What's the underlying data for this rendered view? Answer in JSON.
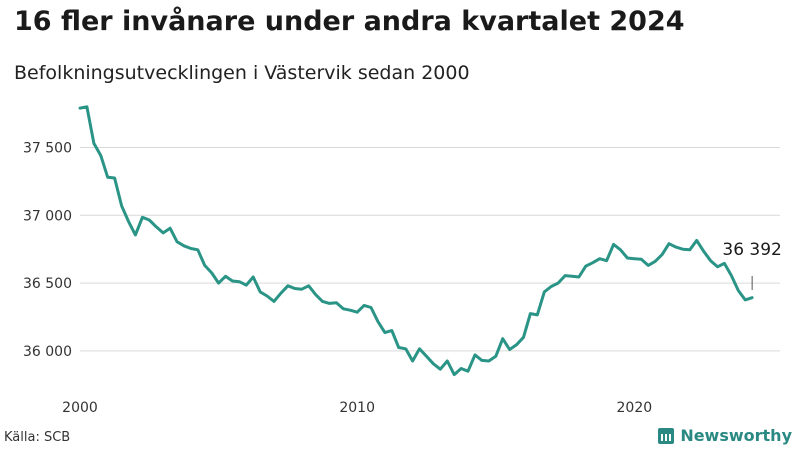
{
  "header": {
    "title": "16 fler invånare under andra kvartalet 2024",
    "subtitle": "Befolkningsutvecklingen i Västervik sedan 2000"
  },
  "footer": {
    "source": "Källa: SCB",
    "brand": "Newsworthy"
  },
  "colors": {
    "line": "#2a9486",
    "grid": "#d9d9d9",
    "brand": "#2a8a83"
  },
  "chart_data": {
    "type": "line",
    "title": "16 fler invånare under andra kvartalet 2024",
    "subtitle": "Befolkningsutvecklingen i Västervik sedan 2000",
    "xlabel": "",
    "ylabel": "",
    "ylim": [
      35800,
      37850
    ],
    "xlim": [
      2000,
      2024.75
    ],
    "yticks": [
      {
        "value": 36000,
        "label": "36 000"
      },
      {
        "value": 36500,
        "label": "36 500"
      },
      {
        "value": 37000,
        "label": "37 000"
      },
      {
        "value": 37500,
        "label": "37 500"
      }
    ],
    "xticks": [
      {
        "value": 2000,
        "label": "2000"
      },
      {
        "value": 2010,
        "label": "2010"
      },
      {
        "value": 2020,
        "label": "2020"
      }
    ],
    "grid": true,
    "annotation": {
      "label": "36 392",
      "x": 2024.25,
      "y": 36392
    },
    "x": [
      2000.0,
      2000.25,
      2000.5,
      2000.75,
      2001.0,
      2001.25,
      2001.5,
      2001.75,
      2002.0,
      2002.25,
      2002.5,
      2002.75,
      2003.0,
      2003.25,
      2003.5,
      2003.75,
      2004.0,
      2004.25,
      2004.5,
      2004.75,
      2005.0,
      2005.25,
      2005.5,
      2005.75,
      2006.0,
      2006.25,
      2006.5,
      2006.75,
      2007.0,
      2007.25,
      2007.5,
      2007.75,
      2008.0,
      2008.25,
      2008.5,
      2008.75,
      2009.0,
      2009.25,
      2009.5,
      2009.75,
      2010.0,
      2010.25,
      2010.5,
      2010.75,
      2011.0,
      2011.25,
      2011.5,
      2011.75,
      2012.0,
      2012.25,
      2012.5,
      2012.75,
      2013.0,
      2013.25,
      2013.5,
      2013.75,
      2014.0,
      2014.25,
      2014.5,
      2014.75,
      2015.0,
      2015.25,
      2015.5,
      2015.75,
      2016.0,
      2016.25,
      2016.5,
      2016.75,
      2017.0,
      2017.25,
      2017.5,
      2017.75,
      2018.0,
      2018.25,
      2018.5,
      2018.75,
      2019.0,
      2019.25,
      2019.5,
      2019.75,
      2020.0,
      2020.25,
      2020.5,
      2020.75,
      2021.0,
      2021.25,
      2021.5,
      2021.75,
      2022.0,
      2022.25,
      2022.5,
      2022.75,
      2023.0,
      2023.25,
      2023.5,
      2023.75,
      2024.0,
      2024.25
    ],
    "series": [
      {
        "values": [
          37790,
          37800,
          37530,
          37440,
          37280,
          37275,
          37070,
          36955,
          36855,
          36985,
          36965,
          36915,
          36870,
          36905,
          36805,
          36775,
          36755,
          36745,
          36630,
          36575,
          36500,
          36550,
          36515,
          36510,
          36485,
          36545,
          36435,
          36405,
          36365,
          36425,
          36480,
          36460,
          36455,
          36480,
          36415,
          36365,
          36350,
          36355,
          36310,
          36300,
          36285,
          36335,
          36320,
          36215,
          36135,
          36150,
          36025,
          36015,
          35925,
          36015,
          35960,
          35905,
          35865,
          35925,
          35825,
          35870,
          35850,
          35970,
          35930,
          35925,
          35960,
          36090,
          36010,
          36045,
          36100,
          36275,
          36265,
          36435,
          36475,
          36500,
          36555,
          36550,
          36545,
          36625,
          36650,
          36680,
          36665,
          36785,
          36745,
          36685,
          36680,
          36675,
          36630,
          36660,
          36710,
          36790,
          36765,
          36750,
          36745,
          36815,
          36735,
          36665,
          36620,
          36645,
          36555,
          36445,
          36376,
          36392
        ]
      }
    ]
  }
}
